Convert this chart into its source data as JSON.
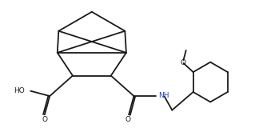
{
  "bg_color": "#ffffff",
  "line_color": "#1a1a1a",
  "lw": 1.3,
  "fig_width": 3.19,
  "fig_height": 1.7,
  "dpi": 100,
  "xlim": [
    0,
    10
  ],
  "ylim": [
    0,
    5.3
  ]
}
